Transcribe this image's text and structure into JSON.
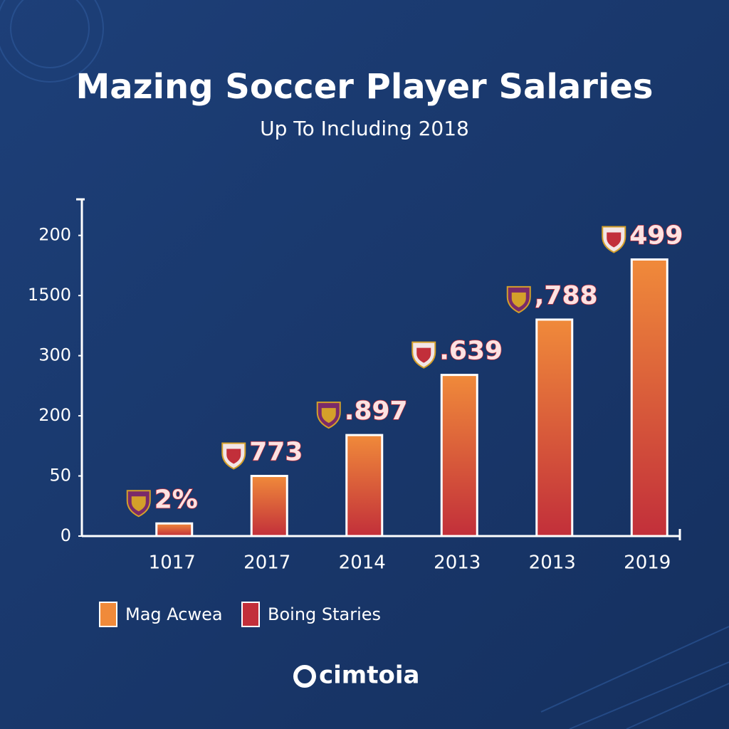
{
  "chart_data": {
    "type": "bar",
    "title": "Mazing Soccer Player Salaries",
    "subtitle": "Up To Including 2018",
    "categories": [
      "1017",
      "2017",
      "2014",
      "2013",
      "2013",
      "2019"
    ],
    "values": [
      0.21,
      1.0,
      1.68,
      2.68,
      3.6,
      4.6
    ],
    "annotations": [
      "2%",
      "773",
      ".897",
      ".639",
      ",788",
      "499"
    ],
    "ylim": [
      0,
      5.6
    ],
    "yticks": [
      {
        "value": 0,
        "label": "0"
      },
      {
        "value": 1,
        "label": "50"
      },
      {
        "value": 2,
        "label": "200"
      },
      {
        "value": 3,
        "label": "300"
      },
      {
        "value": 4,
        "label": "1500"
      },
      {
        "value": 5,
        "label": "200"
      }
    ],
    "legend": [
      {
        "name": "Mag Acwea",
        "color": "#f08a3a"
      },
      {
        "name": "Boing Staries",
        "color": "#c22f3a"
      }
    ],
    "footer": "cimtoia"
  }
}
